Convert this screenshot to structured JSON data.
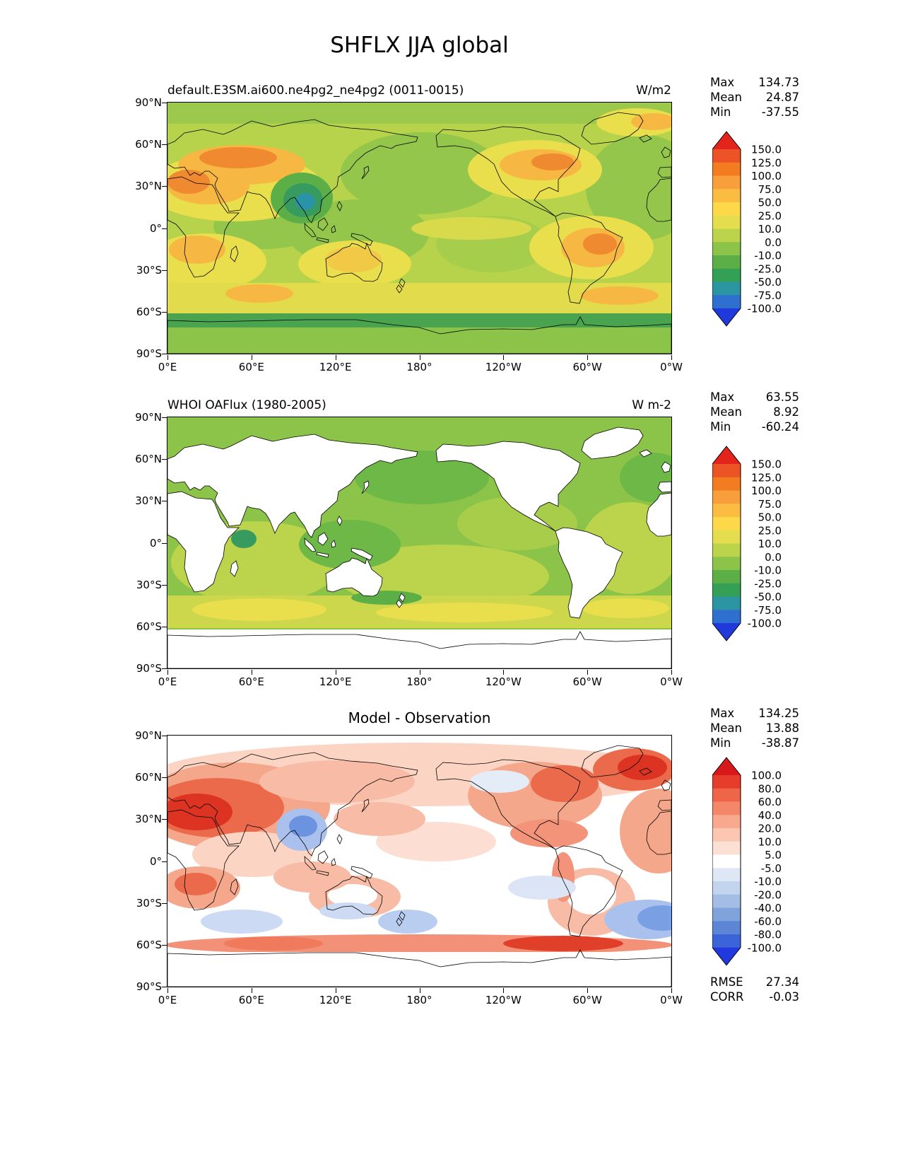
{
  "figure": {
    "title": "SHFLX JJA global"
  },
  "axes": {
    "lat_ticks": [
      "90°N",
      "60°N",
      "30°N",
      "0°",
      "30°S",
      "60°S",
      "90°S"
    ],
    "lon_ticks": [
      "0°E",
      "60°E",
      "120°E",
      "180°",
      "120°W",
      "60°W",
      "0°W"
    ]
  },
  "panels": [
    {
      "title": "default.E3SM.ai600.ne4pg2_ne4pg2 (0011-0015)",
      "units": "W/m2",
      "stats": [
        {
          "label": "Max",
          "value": "134.73"
        },
        {
          "label": "Mean",
          "value": "24.87"
        },
        {
          "label": "Min",
          "value": "-37.55"
        }
      ],
      "colorbar": "absolute"
    },
    {
      "title": "WHOI OAFlux (1980-2005)",
      "units": "W m-2",
      "stats": [
        {
          "label": "Max",
          "value": "63.55"
        },
        {
          "label": "Mean",
          "value": "8.92"
        },
        {
          "label": "Min",
          "value": "-60.24"
        }
      ],
      "colorbar": "absolute"
    },
    {
      "title": "Model - Observation",
      "units": "",
      "stats": [
        {
          "label": "Max",
          "value": "134.25"
        },
        {
          "label": "Mean",
          "value": "13.88"
        },
        {
          "label": "Min",
          "value": "-38.87"
        }
      ],
      "extra_stats": [
        {
          "label": "RMSE",
          "value": "27.34"
        },
        {
          "label": "CORR",
          "value": "-0.03"
        }
      ],
      "colorbar": "difference"
    }
  ],
  "colorbars": {
    "absolute": {
      "levels": [
        "150.0",
        "125.0",
        "100.0",
        "75.0",
        "50.0",
        "25.0",
        "10.0",
        "0.0",
        "-10.0",
        "-25.0",
        "-50.0",
        "-75.0",
        "-100.0"
      ],
      "colors": [
        "#e2241d",
        "#ec5426",
        "#f47c20",
        "#f89e3b",
        "#fbbc42",
        "#fdd94a",
        "#e4dd4d",
        "#bcd44c",
        "#8cc44a",
        "#5cae47",
        "#33a055",
        "#2b96a1",
        "#2f6fd0",
        "#2138dd"
      ]
    },
    "difference": {
      "levels": [
        "100.0",
        "80.0",
        "60.0",
        "40.0",
        "20.0",
        "10.0",
        "5.0",
        "-5.0",
        "-10.0",
        "-20.0",
        "-40.0",
        "-60.0",
        "-80.0",
        "-100.0"
      ],
      "colors": [
        "#d7191c",
        "#e63c2b",
        "#ef6547",
        "#f4876a",
        "#f8a98d",
        "#fbc6b2",
        "#fde0d4",
        "#ffffff",
        "#dde7f5",
        "#c3d4ee",
        "#a3bde4",
        "#7fa3da",
        "#5c85d6",
        "#3b64d8",
        "#2038dd"
      ]
    }
  },
  "chart_data": {
    "type": "heatmap",
    "subtype": "global_latlon_filled_contour_maps",
    "variable": "SHFLX",
    "season": "JJA",
    "region": "global",
    "title": "SHFLX JJA global",
    "x_axis": {
      "ticks": [
        "0°E",
        "60°E",
        "120°E",
        "180°",
        "120°W",
        "60°W",
        "0°W"
      ],
      "range_deg": [
        0,
        360
      ]
    },
    "y_axis": {
      "ticks": [
        "90°N",
        "60°N",
        "30°N",
        "0°",
        "30°S",
        "60°S",
        "90°S"
      ],
      "range_deg": [
        -90,
        90
      ]
    },
    "maps": [
      {
        "name": "model",
        "title": "default.E3SM.ai600.ne4pg2_ne4pg2 (0011-0015)",
        "units": "W/m2",
        "max": 134.73,
        "mean": 24.87,
        "min": -37.55,
        "contour_levels": [
          -100,
          -75,
          -50,
          -25,
          -10,
          0,
          10,
          25,
          50,
          75,
          100,
          125,
          150
        ],
        "coverage": "land_and_ocean"
      },
      {
        "name": "observation",
        "title": "WHOI OAFlux (1980-2005)",
        "units": "W m-2",
        "max": 63.55,
        "mean": 8.92,
        "min": -60.24,
        "contour_levels": [
          -100,
          -75,
          -50,
          -25,
          -10,
          0,
          10,
          25,
          50,
          75,
          100,
          125,
          150
        ],
        "coverage": "ocean_only"
      },
      {
        "name": "difference",
        "title": "Model - Observation",
        "max": 134.25,
        "mean": 13.88,
        "min": -38.87,
        "rmse": 27.34,
        "corr": -0.03,
        "contour_levels": [
          -100,
          -80,
          -60,
          -40,
          -20,
          -10,
          -5,
          5,
          10,
          20,
          40,
          60,
          80,
          100
        ]
      }
    ]
  }
}
